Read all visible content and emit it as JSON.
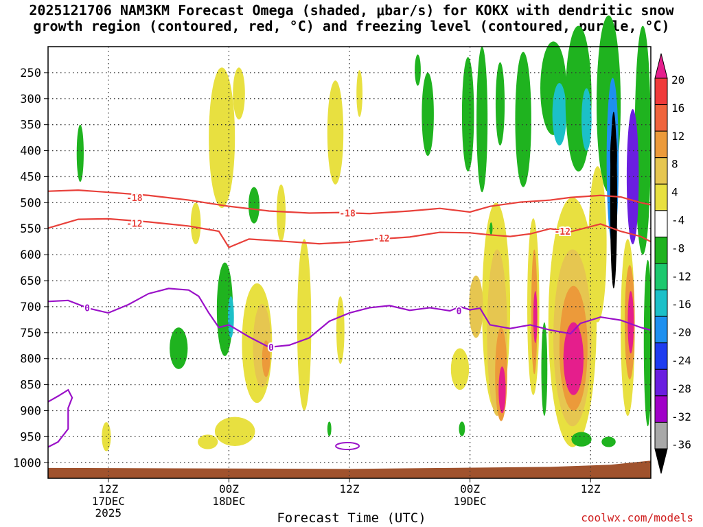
{
  "title_line_1": "2025121706 NAM3KM Forecast Omega (shaded, μbar/s) for KOKX with dendritic snow",
  "title_line_2": "growth region (contoured, red, °C) and freezing level (contoured, purple, °C)",
  "credit": "coolwx.com/models",
  "chart_data": {
    "type": "time-height cross-section (filled contour)",
    "xlabel": "Forecast Time (UTC)",
    "x_ticks": [
      {
        "label": "12Z",
        "sub": [
          "17DEC",
          "2025"
        ],
        "hour": 6
      },
      {
        "label": "00Z",
        "sub": [
          "18DEC"
        ],
        "hour": 18
      },
      {
        "label": "12Z",
        "sub": [],
        "hour": 30
      },
      {
        "label": "00Z",
        "sub": [
          "19DEC"
        ],
        "hour": 42
      },
      {
        "label": "12Z",
        "sub": [],
        "hour": 54
      }
    ],
    "x_range_hours": [
      0,
      60
    ],
    "y_axis": "pressure (hPa), inverted",
    "y_ticks": [
      250,
      300,
      350,
      400,
      450,
      500,
      550,
      600,
      650,
      700,
      750,
      800,
      850,
      900,
      950,
      1000
    ],
    "y_range": [
      200,
      1030
    ],
    "colorbar": {
      "labels": [
        "20",
        "16",
        "12",
        "8",
        "4",
        "-4",
        "-8",
        "-12",
        "-16",
        "-20",
        "-24",
        "-28",
        "-32",
        "-36"
      ],
      "colors": [
        "#e51e8c",
        "#f03a3a",
        "#f0643c",
        "#ec9a3a",
        "#e6c650",
        "#e8e040",
        "#ffffff",
        "#1fb31f",
        "#1cc86e",
        "#1cc0c8",
        "#1e90f0",
        "#1e3cf0",
        "#6a1ee0",
        "#a000c8",
        "#a8a8a8",
        "#000000"
      ],
      "units": "μbar/s"
    },
    "contours": [
      {
        "name": "-18",
        "color": "#e8403a",
        "points": [
          [
            0,
            478
          ],
          [
            3,
            476
          ],
          [
            6,
            480
          ],
          [
            10,
            486
          ],
          [
            14,
            495
          ],
          [
            18,
            507
          ],
          [
            22,
            516
          ],
          [
            26,
            520
          ],
          [
            29,
            519
          ],
          [
            32,
            521
          ],
          [
            36,
            516
          ],
          [
            39,
            511
          ],
          [
            42,
            518
          ],
          [
            44,
            507
          ],
          [
            47,
            499
          ],
          [
            50,
            495
          ],
          [
            52,
            490
          ],
          [
            55,
            486
          ],
          [
            57,
            489
          ],
          [
            59,
            500
          ],
          [
            60,
            504
          ]
        ]
      },
      {
        "name": "-12",
        "color": "#e8403a",
        "points": [
          [
            0,
            549
          ],
          [
            3,
            532
          ],
          [
            6,
            531
          ],
          [
            10,
            537
          ],
          [
            14,
            545
          ],
          [
            17,
            555
          ],
          [
            18,
            586
          ],
          [
            20,
            570
          ],
          [
            24,
            575
          ],
          [
            27,
            579
          ],
          [
            30,
            576
          ],
          [
            33,
            570
          ],
          [
            36,
            566
          ],
          [
            39,
            557
          ],
          [
            42,
            558
          ],
          [
            44,
            562
          ],
          [
            46,
            565
          ],
          [
            48,
            560
          ],
          [
            50,
            550
          ],
          [
            52,
            556
          ],
          [
            55,
            541
          ],
          [
            57,
            555
          ],
          [
            59,
            565
          ],
          [
            60,
            575
          ]
        ]
      },
      {
        "name": "0",
        "color": "#9a10c8",
        "points": [
          [
            0,
            690
          ],
          [
            2,
            688
          ],
          [
            4,
            703
          ],
          [
            6,
            712
          ],
          [
            8,
            696
          ],
          [
            10,
            675
          ],
          [
            12,
            665
          ],
          [
            14,
            668
          ],
          [
            15,
            680
          ],
          [
            16,
            712
          ],
          [
            17,
            740
          ],
          [
            18,
            735
          ],
          [
            20,
            758
          ],
          [
            22,
            778
          ],
          [
            24,
            774
          ],
          [
            26,
            760
          ],
          [
            28,
            728
          ],
          [
            30,
            712
          ],
          [
            32,
            702
          ],
          [
            34,
            698
          ],
          [
            36,
            707
          ],
          [
            38,
            702
          ],
          [
            40,
            708
          ],
          [
            41,
            700
          ],
          [
            42,
            706
          ],
          [
            43,
            703
          ],
          [
            44,
            735
          ],
          [
            46,
            742
          ],
          [
            48,
            735
          ],
          [
            50,
            745
          ],
          [
            52,
            752
          ],
          [
            53,
            732
          ],
          [
            55,
            720
          ],
          [
            57,
            726
          ],
          [
            59,
            740
          ],
          [
            60,
            745
          ]
        ]
      },
      {
        "name": "0-low",
        "color": "#9a10c8",
        "points": [
          [
            0,
            883
          ],
          [
            1,
            872
          ],
          [
            2,
            860
          ],
          [
            2.4,
            875
          ],
          [
            2,
            895
          ],
          [
            2,
            935
          ],
          [
            1,
            960
          ],
          [
            0,
            970
          ]
        ]
      }
    ]
  }
}
